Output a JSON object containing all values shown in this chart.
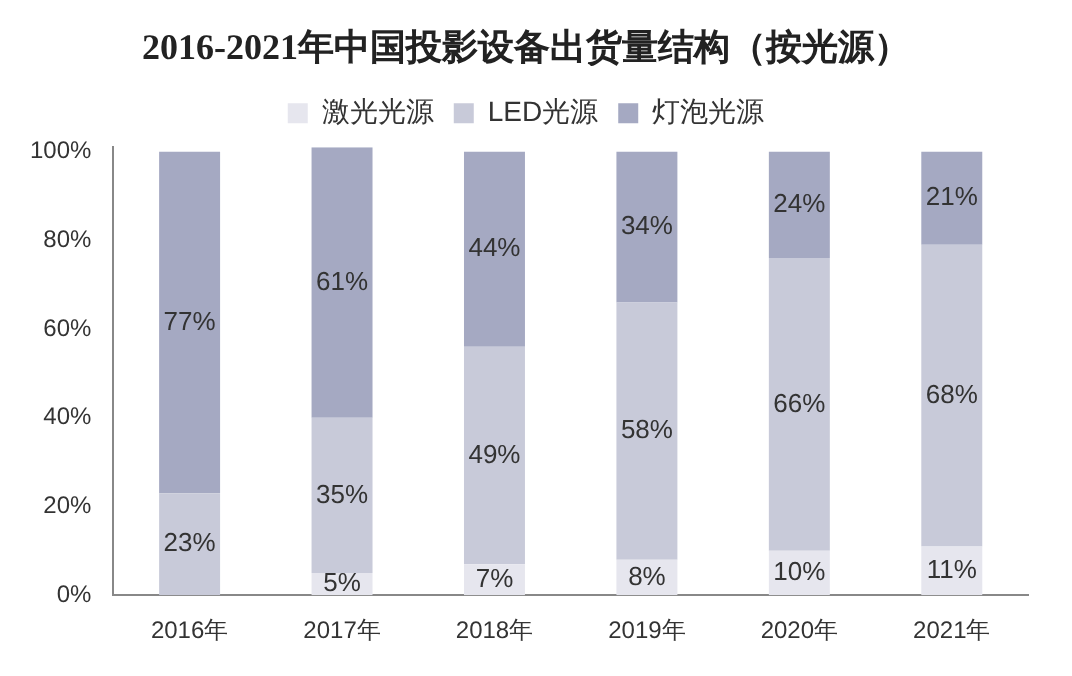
{
  "chart_data": {
    "type": "bar",
    "title": "2016-2021年中国投影设备出货量结构（按光源）",
    "stacked": true,
    "legend": "top",
    "categories": [
      "2016年",
      "2017年",
      "2018年",
      "2019年",
      "2020年",
      "2021年"
    ],
    "series": [
      {
        "name": "激光光源",
        "color": "#e6e6ee",
        "values": [
          0,
          5,
          7,
          8,
          10,
          11
        ],
        "value_labels": [
          null,
          "5%",
          "7%",
          "8%",
          "10%",
          "11%"
        ]
      },
      {
        "name": "LED光源",
        "color": "#c8cad9",
        "values": [
          23,
          35,
          49,
          58,
          66,
          68
        ],
        "value_labels": [
          "23%",
          "35%",
          "49%",
          "58%",
          "66%",
          "68%"
        ]
      },
      {
        "name": "灯泡光源",
        "color": "#a5a9c2",
        "values": [
          77,
          61,
          44,
          34,
          24,
          21
        ],
        "value_labels": [
          "77%",
          "61%",
          "44%",
          "34%",
          "24%",
          "21%"
        ]
      }
    ],
    "ylim": [
      0,
      101
    ],
    "yticks": [
      {
        "value": 0,
        "label": "0%"
      },
      {
        "value": 20,
        "label": "20%"
      },
      {
        "value": 40,
        "label": "40%"
      },
      {
        "value": 60,
        "label": "60%"
      },
      {
        "value": 80,
        "label": "80%"
      },
      {
        "value": 100,
        "label": "100%"
      }
    ]
  }
}
